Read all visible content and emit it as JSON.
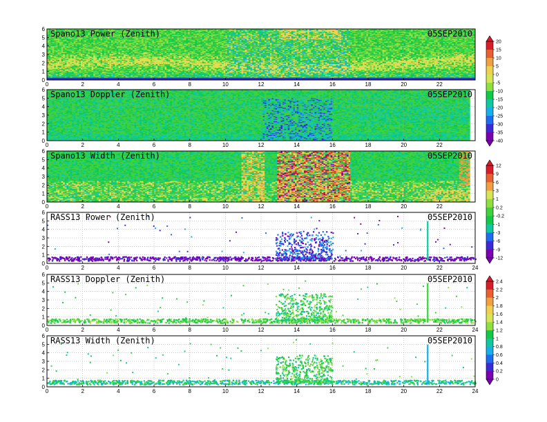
{
  "figure": {
    "date_label": "05SEP2010"
  },
  "chart_data": [
    {
      "type": "heatmap",
      "title": "Spano13 Power (Zenith)",
      "date": "05SEP2010",
      "x_ticks": [
        "0",
        "2",
        "4",
        "6",
        "8",
        "10",
        "12",
        "14",
        "16",
        "18",
        "20",
        "22"
      ],
      "y_ticks": [
        "0",
        "1",
        "2",
        "3",
        "4",
        "5",
        "6"
      ],
      "xlim": [
        0,
        24
      ],
      "ylim": [
        0,
        6
      ],
      "grid": true,
      "colorbar_group": 0
    },
    {
      "type": "heatmap",
      "title": "Spano13 Doppler (Zenith)",
      "date": "05SEP2010",
      "x_ticks": [
        "0",
        "2",
        "4",
        "6",
        "8",
        "10",
        "12",
        "14",
        "16",
        "18",
        "20",
        "22"
      ],
      "y_ticks": [
        "0",
        "1",
        "2",
        "3",
        "4",
        "5",
        "6"
      ],
      "xlim": [
        0,
        24
      ],
      "ylim": [
        0,
        6
      ],
      "grid": true,
      "colorbar_group": 0
    },
    {
      "type": "heatmap",
      "title": "Spano13 Width (Zenith)",
      "date": "05SEP2010",
      "x_ticks": [
        "0",
        "2",
        "4",
        "6",
        "8",
        "10",
        "12",
        "14",
        "16",
        "18",
        "20",
        "22"
      ],
      "y_ticks": [
        "0",
        "1",
        "2",
        "3",
        "4",
        "5",
        "6"
      ],
      "xlim": [
        0,
        24
      ],
      "ylim": [
        0,
        6
      ],
      "grid": true,
      "colorbar_group": 1
    },
    {
      "type": "scatter",
      "title": "RASS13 Power (Zenith)",
      "date": "05SEP2010",
      "x_ticks": [
        "0",
        "2",
        "4",
        "6",
        "8",
        "10",
        "12",
        "14",
        "16",
        "18",
        "20",
        "22",
        "24"
      ],
      "y_ticks": [
        "0",
        "1",
        "2",
        "3",
        "4",
        "5",
        "6"
      ],
      "xlim": [
        0,
        24
      ],
      "ylim": [
        0,
        6
      ],
      "grid": true,
      "colorbar_group": 1
    },
    {
      "type": "scatter",
      "title": "RASS13 Doppler (Zenith)",
      "date": "05SEP2010",
      "x_ticks": [
        "0",
        "2",
        "4",
        "6",
        "8",
        "10",
        "12",
        "14",
        "16",
        "18",
        "20",
        "22",
        "24"
      ],
      "y_ticks": [
        "0",
        "1",
        "2",
        "3",
        "4",
        "5",
        "6"
      ],
      "xlim": [
        0,
        24
      ],
      "ylim": [
        0,
        6
      ],
      "grid": true,
      "colorbar_group": 2
    },
    {
      "type": "scatter",
      "title": "RASS13 Width (Zenith)",
      "date": "05SEP2010",
      "x_ticks": [
        "0",
        "2",
        "4",
        "6",
        "8",
        "10",
        "12",
        "14",
        "16",
        "18",
        "20",
        "22",
        "24"
      ],
      "y_ticks": [
        "0",
        "1",
        "2",
        "3",
        "4",
        "5",
        "6"
      ],
      "xlim": [
        0,
        24
      ],
      "ylim": [
        0,
        6
      ],
      "grid": true,
      "colorbar_group": 2
    }
  ],
  "colorbars": [
    {
      "labels": [
        "20",
        "15",
        "10",
        "5",
        "0",
        "-5",
        "-10",
        "-15",
        "-20",
        "-25",
        "-30",
        "-35",
        "-40"
      ]
    },
    {
      "labels": [
        "12",
        "9",
        "6",
        "3",
        "1",
        "0.2",
        "-0.2",
        "-1",
        "-3",
        "-6",
        "-9",
        "-12"
      ]
    },
    {
      "labels": [
        "2.4",
        "2.2",
        "2",
        "1.8",
        "1.6",
        "1.4",
        "1.2",
        "1",
        "0.8",
        "0.6",
        "0.4",
        "0.2",
        "0"
      ]
    }
  ],
  "colors": {
    "palette": [
      "#7b00b0",
      "#3b2bd6",
      "#1e6cf0",
      "#18b0e8",
      "#10c9a0",
      "#12c94a",
      "#3fd23f",
      "#8ee040",
      "#d6e455",
      "#f0d050",
      "#f0a040",
      "#e86030",
      "#d81c2a"
    ],
    "background_field": "#3fd23f"
  }
}
